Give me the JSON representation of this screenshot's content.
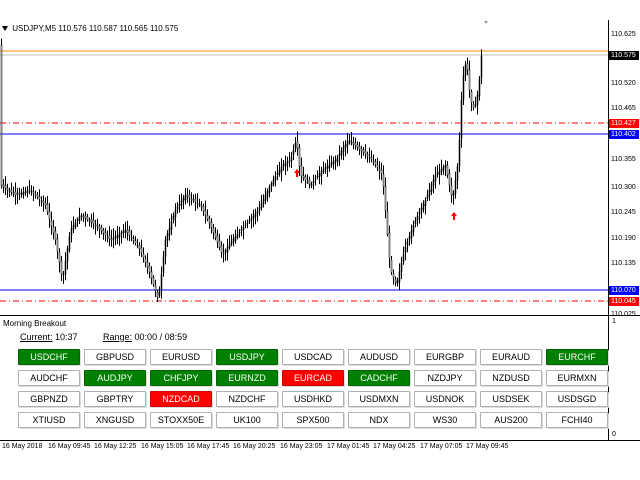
{
  "header": {
    "symbol": "USDJPY,M5",
    "ohlc": "110.576 110.587 110.565 110.575"
  },
  "price_axis": {
    "ticks": [
      "110.625",
      "110.520",
      "110.465",
      "110.355",
      "110.300",
      "110.245",
      "110.190",
      "110.135",
      "110.025"
    ],
    "tags": [
      {
        "value": "110.575",
        "color": "#000000"
      },
      {
        "value": "110.427",
        "color": "#ff0000"
      },
      {
        "value": "110.402",
        "color": "#0000ff"
      },
      {
        "value": "110.070",
        "color": "#0000ff"
      },
      {
        "value": "110.045",
        "color": "#ff0000"
      }
    ]
  },
  "time_axis": {
    "labels": [
      "16 May 2018",
      "16 May 09:45",
      "16 May 12:25",
      "16 May 15:05",
      "16 May 17:45",
      "16 May 20:25",
      "16 May 23:05",
      "17 May 01:45",
      "17 May 04:25",
      "17 May 07:05",
      "17 May 09:45"
    ]
  },
  "panel": {
    "title": "Morning Breakout",
    "current_label": "Current:",
    "current_value": "10:37",
    "range_label": "Range:",
    "range_value": "00:00 / 08:59",
    "axis_top": "1",
    "axis_bottom": "0"
  },
  "buttons": [
    [
      {
        "label": "USDCHF",
        "state": "green"
      },
      {
        "label": "GBPUSD",
        "state": "normal"
      },
      {
        "label": "EURUSD",
        "state": "normal"
      },
      {
        "label": "USDJPY",
        "state": "green"
      },
      {
        "label": "USDCAD",
        "state": "normal"
      },
      {
        "label": "AUDUSD",
        "state": "normal"
      },
      {
        "label": "EURGBP",
        "state": "normal"
      },
      {
        "label": "EURAUD",
        "state": "normal"
      },
      {
        "label": "EURCHF",
        "state": "green"
      }
    ],
    [
      {
        "label": "AUDCHF",
        "state": "normal"
      },
      {
        "label": "AUDJPY",
        "state": "green"
      },
      {
        "label": "CHFJPY",
        "state": "green"
      },
      {
        "label": "EURNZD",
        "state": "green"
      },
      {
        "label": "EURCAD",
        "state": "red"
      },
      {
        "label": "CADCHF",
        "state": "green"
      },
      {
        "label": "NZDJPY",
        "state": "normal"
      },
      {
        "label": "NZDUSD",
        "state": "normal"
      },
      {
        "label": "EURMXN",
        "state": "normal"
      }
    ],
    [
      {
        "label": "GBPNZD",
        "state": "normal"
      },
      {
        "label": "GBPTRY",
        "state": "normal"
      },
      {
        "label": "NZDCAD",
        "state": "red"
      },
      {
        "label": "NZDCHF",
        "state": "normal"
      },
      {
        "label": "USDHKD",
        "state": "normal"
      },
      {
        "label": "USDMXN",
        "state": "normal"
      },
      {
        "label": "USDNOK",
        "state": "normal"
      },
      {
        "label": "USDSEK",
        "state": "normal"
      },
      {
        "label": "USDSGD",
        "state": "normal"
      }
    ],
    [
      {
        "label": "XTIUSD",
        "state": "normal"
      },
      {
        "label": "XNGUSD",
        "state": "normal"
      },
      {
        "label": "STOXX50E",
        "state": "normal"
      },
      {
        "label": "UK100",
        "state": "normal"
      },
      {
        "label": "SPX500",
        "state": "normal"
      },
      {
        "label": "NDX",
        "state": "normal"
      },
      {
        "label": "WS30",
        "state": "normal"
      },
      {
        "label": "AUS200",
        "state": "normal"
      },
      {
        "label": "FCHI40",
        "state": "normal"
      }
    ]
  ],
  "colors": {
    "green": "#008000",
    "red": "#ff0000",
    "hline_blue": "#0000ff",
    "hline_red": "#ff0000",
    "bid_line": "#ff8c00"
  },
  "icons": [
    "dropdown-triangle-icon",
    "buy-arrow-icon"
  ]
}
